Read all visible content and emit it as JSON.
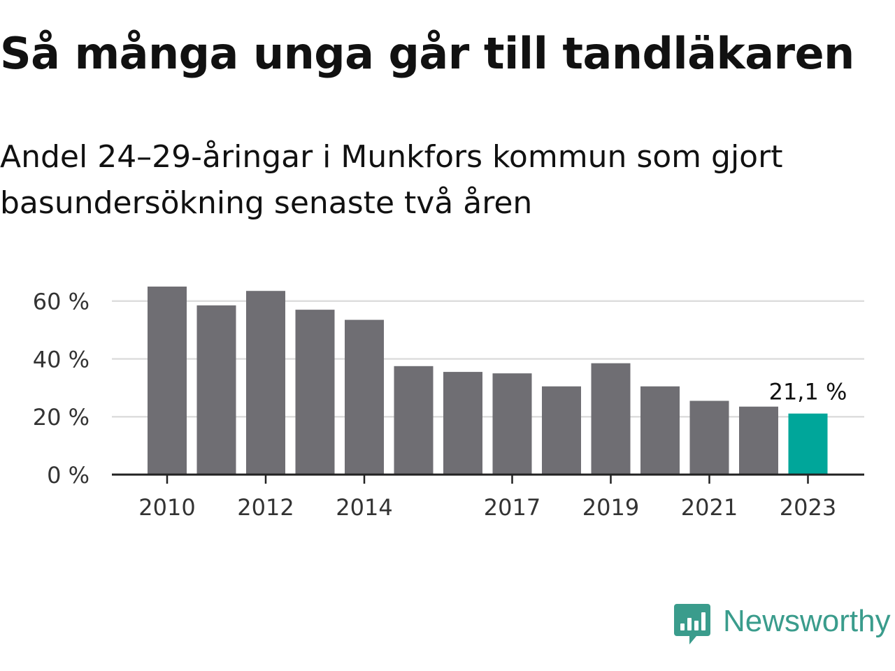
{
  "header": {
    "title": "Så många unga går till tandläkaren",
    "subtitle": "Andel 24–29-åringar i Munkfors kommun som gjort basundersökning senaste två åren"
  },
  "brand": {
    "name": "Newsworthy",
    "color": "#3a9c8c"
  },
  "colors": {
    "bar": "#6f6e73",
    "highlight": "#00a69a",
    "grid": "#dddddd",
    "axis": "#222222"
  },
  "chart_data": {
    "type": "bar",
    "categories": [
      "2010",
      "2011",
      "2012",
      "2013",
      "2014",
      "2015",
      "2016",
      "2017",
      "2018",
      "2019",
      "2020",
      "2021",
      "2022",
      "2023"
    ],
    "values": [
      65,
      58.5,
      63.5,
      57,
      53.5,
      37.5,
      35.5,
      35,
      30.5,
      38.5,
      30.5,
      25.5,
      23.5,
      21.1
    ],
    "x_tick_labels": [
      "2010",
      "2012",
      "2014",
      "2017",
      "2019",
      "2021",
      "2023"
    ],
    "y_ticks": [
      0,
      20,
      40,
      60
    ],
    "y_tick_labels": [
      "0 %",
      "20 %",
      "40 %",
      "60 %"
    ],
    "ylim": [
      0,
      65
    ],
    "grid": true,
    "highlight_index": 13,
    "annotation": "21,1 %"
  }
}
